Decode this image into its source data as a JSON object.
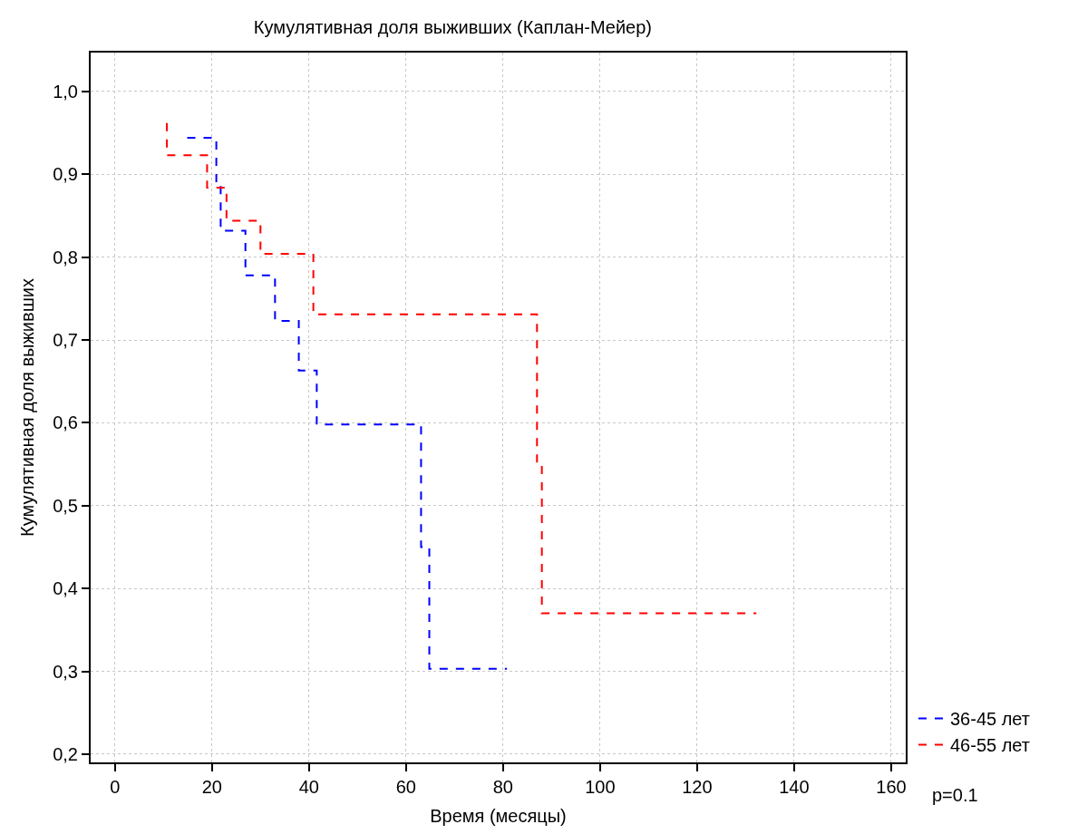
{
  "chart_data": {
    "type": "step",
    "title": "Кумулятивная доля выживших (Каплан-Мейер)",
    "xlabel": "Время (месяцы)",
    "ylabel": "Кумулятивная доля выживших",
    "series": [
      {
        "name": "36-45 лет",
        "color": "#0000ff",
        "x": [
          14.9,
          20.9,
          21.8,
          26.9,
          33.0,
          37.9,
          41.6,
          63.1,
          64.8,
          80.8
        ],
        "values": [
          0.944,
          0.888,
          0.832,
          0.778,
          0.723,
          0.663,
          0.598,
          0.45,
          0.303,
          0.303
        ]
      },
      {
        "name": "46-55 лет",
        "color": "#ff0000",
        "x": [
          10.7,
          10.7,
          19.0,
          23.0,
          30.0,
          40.9,
          87.0,
          88.0,
          132.2
        ],
        "values": [
          0.962,
          0.923,
          0.884,
          0.844,
          0.804,
          0.731,
          0.551,
          0.37,
          0.37
        ]
      }
    ],
    "xlim": [
      -5,
      163
    ],
    "xticks": [
      0,
      20,
      40,
      60,
      80,
      100,
      120,
      140,
      160
    ],
    "ylim": [
      0.19,
      1.047
    ],
    "yticks": [
      {
        "value": 0.2,
        "label": "0,2"
      },
      {
        "value": 0.3,
        "label": "0,3"
      },
      {
        "value": 0.4,
        "label": "0,4"
      },
      {
        "value": 0.5,
        "label": "0,5"
      },
      {
        "value": 0.6,
        "label": "0,6"
      },
      {
        "value": 0.7,
        "label": "0,7"
      },
      {
        "value": 0.8,
        "label": "0,8"
      },
      {
        "value": 0.9,
        "label": "0,9"
      },
      {
        "value": 1.0,
        "label": "1,0"
      }
    ],
    "grid": true,
    "legend": "bottom right",
    "line_style": "dashed",
    "marker": "none",
    "annotations": [
      "p=0.1"
    ]
  }
}
